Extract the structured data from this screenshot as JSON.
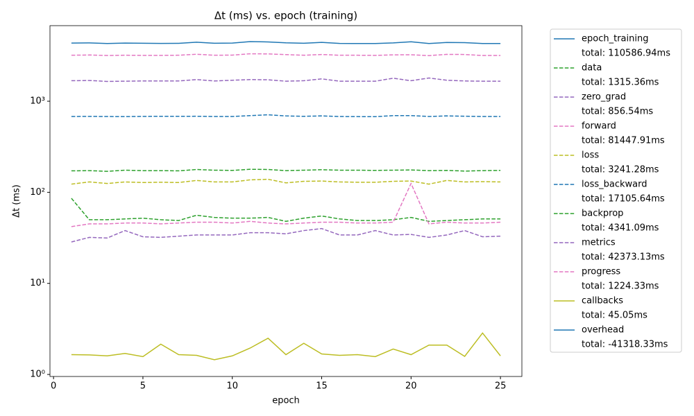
{
  "chart_data": {
    "type": "line",
    "title": "Δt (ms) vs. epoch (training)",
    "x_label": "epoch",
    "y_label": "Δt (ms)",
    "x": [
      1,
      2,
      3,
      4,
      5,
      6,
      7,
      8,
      9,
      10,
      11,
      12,
      13,
      14,
      15,
      16,
      17,
      18,
      19,
      20,
      21,
      22,
      23,
      24,
      25
    ],
    "xlim": [
      -0.2,
      26.2
    ],
    "xticks": [
      0,
      5,
      10,
      15,
      20,
      25
    ],
    "log_y": true,
    "ylim": [
      0.95,
      6760
    ],
    "yticks": [
      {
        "value": 1,
        "label": "10⁰"
      },
      {
        "value": 10,
        "label": "10¹"
      },
      {
        "value": 100,
        "label": "10²"
      },
      {
        "value": 1000,
        "label": "10³"
      }
    ],
    "legend": "outside-right",
    "series": [
      {
        "name": "epoch_training",
        "legend_total": "total: 110586.94ms",
        "color": "#1f77b4",
        "linestyle": "solid",
        "values": [
          4350,
          4370,
          4300,
          4350,
          4330,
          4310,
          4320,
          4450,
          4330,
          4350,
          4520,
          4480,
          4380,
          4330,
          4430,
          4310,
          4300,
          4300,
          4370,
          4500,
          4300,
          4420,
          4400,
          4300,
          4300
        ]
      },
      {
        "name": "data",
        "legend_total": "total: 1315.36ms",
        "color": "#2ca02c",
        "linestyle": "dashed",
        "values": [
          86,
          50,
          50,
          51,
          52,
          50,
          49,
          56,
          53,
          52,
          52,
          53,
          48,
          52,
          55,
          51,
          49,
          49,
          50,
          53,
          48,
          49,
          50,
          51,
          51
        ]
      },
      {
        "name": "zero_grad",
        "legend_total": "total: 856.54ms",
        "color": "#9467bd",
        "linestyle": "dashed",
        "values": [
          28.5,
          32,
          31.5,
          38,
          32.5,
          32,
          33,
          34,
          34,
          34,
          36,
          36,
          35,
          38,
          40,
          34,
          34,
          38,
          34,
          34.5,
          32,
          34,
          38,
          32.5,
          33
        ]
      },
      {
        "name": "forward",
        "legend_total": "total: 81447.91ms",
        "color": "#e377c2",
        "linestyle": "dashed",
        "values": [
          3200,
          3220,
          3180,
          3200,
          3190,
          3190,
          3200,
          3280,
          3200,
          3210,
          3320,
          3310,
          3250,
          3200,
          3260,
          3200,
          3200,
          3190,
          3230,
          3240,
          3170,
          3270,
          3260,
          3180,
          3180
        ]
      },
      {
        "name": "loss",
        "legend_total": "total: 3241.28ms",
        "color": "#bcbd22",
        "linestyle": "dashed",
        "values": [
          123,
          130,
          125,
          130,
          128,
          129,
          128,
          135,
          130,
          130,
          137,
          139,
          127,
          132,
          133,
          130,
          129,
          129,
          132,
          133,
          123,
          135,
          130,
          131,
          130
        ]
      },
      {
        "name": "loss_backward",
        "legend_total": "total: 17105.64ms",
        "color": "#1f77b4",
        "linestyle": "dashed",
        "values": [
          680,
          682,
          680,
          678,
          682,
          683,
          683,
          684,
          680,
          680,
          695,
          710,
          690,
          683,
          690,
          680,
          678,
          677,
          695,
          695,
          680,
          690,
          685,
          680,
          680
        ]
      },
      {
        "name": "backprop",
        "legend_total": "total: 4341.09ms",
        "color": "#2ca02c",
        "linestyle": "dashed",
        "values": [
          172,
          173,
          170,
          175,
          173,
          173,
          172,
          178,
          175,
          174,
          179,
          178,
          173,
          175,
          177,
          175,
          175,
          174,
          175,
          176,
          173,
          174,
          171,
          173,
          174
        ]
      },
      {
        "name": "metrics",
        "legend_total": "total: 42373.13ms",
        "color": "#9467bd",
        "linestyle": "dashed",
        "values": [
          1680,
          1690,
          1650,
          1660,
          1670,
          1670,
          1670,
          1730,
          1670,
          1700,
          1730,
          1720,
          1660,
          1680,
          1760,
          1660,
          1660,
          1660,
          1790,
          1680,
          1800,
          1700,
          1670,
          1660,
          1660
        ]
      },
      {
        "name": "progress",
        "legend_total": "total: 1224.33ms",
        "color": "#e377c2",
        "linestyle": "dashed",
        "values": [
          42,
          45,
          45,
          46,
          46,
          45,
          46,
          47,
          47,
          46,
          48,
          46,
          45,
          46,
          47,
          47,
          46,
          46,
          47,
          125,
          45,
          47,
          46,
          46,
          47
        ]
      },
      {
        "name": "callbacks",
        "legend_total": "total: 45.05ms",
        "color": "#bcbd22",
        "linestyle": "solid",
        "values": [
          1.65,
          1.64,
          1.6,
          1.7,
          1.57,
          2.15,
          1.65,
          1.62,
          1.45,
          1.6,
          1.95,
          2.5,
          1.65,
          2.2,
          1.68,
          1.62,
          1.65,
          1.57,
          1.9,
          1.65,
          2.1,
          2.1,
          1.58,
          2.85,
          1.6
        ]
      },
      {
        "name": "overhead",
        "legend_total": "total: -41318.33ms",
        "color": "#1f77b4",
        "linestyle": "solid"
      }
    ]
  }
}
